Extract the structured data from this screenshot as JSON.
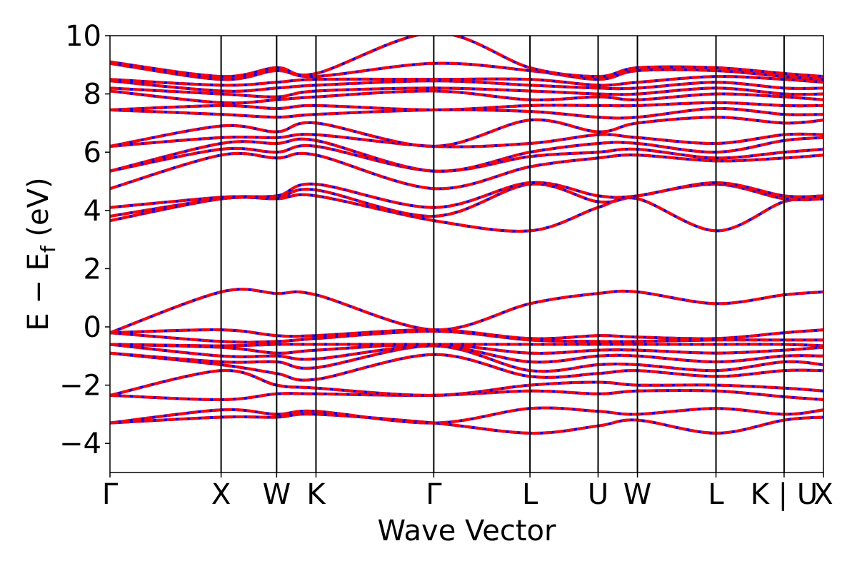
{
  "chart_data": {
    "type": "line",
    "title": "",
    "xlabel": "Wave Vector",
    "ylabel": "E − E",
    "ylabel_subscript": "f",
    "ylabel_unit": " (eV)",
    "ylim": [
      -5,
      10
    ],
    "grid": false,
    "y_ticks": [
      {
        "value": -4,
        "label": "−4"
      },
      {
        "value": -2,
        "label": "−2"
      },
      {
        "value": 0,
        "label": "0"
      },
      {
        "value": 2,
        "label": "2"
      },
      {
        "value": 4,
        "label": "4"
      },
      {
        "value": 6,
        "label": "6"
      },
      {
        "value": 8,
        "label": "8"
      },
      {
        "value": 10,
        "label": "10"
      }
    ],
    "kpoints": [
      {
        "label": "Γ",
        "x": 0
      },
      {
        "label": "X",
        "x": 1.0
      },
      {
        "label": "W",
        "x": 1.5
      },
      {
        "label": "K",
        "x": 1.854
      },
      {
        "label": "Γ",
        "x": 2.914
      },
      {
        "label": "L",
        "x": 3.78
      },
      {
        "label": "U",
        "x": 4.393
      },
      {
        "label": "W",
        "x": 4.747
      },
      {
        "label": "L",
        "x": 5.454
      },
      {
        "label": "K | U",
        "x": 6.067
      },
      {
        "label": "X",
        "x": 6.421
      }
    ],
    "series_colors": {
      "primary": "#0000ff",
      "overlay": "#ff0000"
    },
    "series": [
      {
        "values": [
          -3.3,
          -3.1,
          -3.1,
          -3.0,
          -3.3,
          -3.65,
          -3.4,
          -3.2,
          -3.65,
          -3.2,
          -3.1
        ]
      },
      {
        "values": [
          -3.3,
          -2.85,
          -3.0,
          -2.9,
          -3.3,
          -2.8,
          -2.9,
          -3.0,
          -2.8,
          -3.0,
          -2.85
        ]
      },
      {
        "values": [
          -2.35,
          -2.5,
          -2.3,
          -2.3,
          -2.35,
          -2.2,
          -2.3,
          -2.2,
          -2.2,
          -2.4,
          -2.5
        ]
      },
      {
        "values": [
          -2.35,
          -1.5,
          -2.0,
          -2.1,
          -2.35,
          -2.0,
          -1.9,
          -2.0,
          -2.0,
          -2.1,
          -2.2
        ]
      },
      {
        "values": [
          -0.9,
          -1.3,
          -1.6,
          -1.8,
          -0.95,
          -1.7,
          -1.6,
          -1.5,
          -1.7,
          -1.5,
          -1.5
        ]
      },
      {
        "values": [
          -0.9,
          -1.2,
          -1.2,
          -1.4,
          -0.65,
          -1.5,
          -1.3,
          -1.3,
          -1.5,
          -1.2,
          -1.3
        ]
      },
      {
        "values": [
          -0.6,
          -1.0,
          -1.0,
          -1.1,
          -0.65,
          -1.2,
          -1.0,
          -1.0,
          -1.2,
          -1.0,
          -1.0
        ]
      },
      {
        "values": [
          -0.6,
          -0.7,
          -0.9,
          -0.8,
          -0.6,
          -0.9,
          -0.8,
          -0.8,
          -0.9,
          -0.8,
          -0.7
        ]
      },
      {
        "values": [
          -0.6,
          -0.65,
          -0.6,
          -0.6,
          -0.6,
          -0.6,
          -0.6,
          -0.6,
          -0.6,
          -0.6,
          -0.65
        ]
      },
      {
        "values": [
          -0.2,
          -0.5,
          -0.5,
          -0.4,
          -0.15,
          -0.45,
          -0.5,
          -0.5,
          -0.45,
          -0.45,
          -0.45
        ]
      },
      {
        "values": [
          -0.2,
          -0.1,
          -0.3,
          -0.3,
          -0.1,
          -0.4,
          -0.3,
          -0.35,
          -0.4,
          -0.2,
          -0.1
        ]
      },
      {
        "values": [
          -0.2,
          1.2,
          1.15,
          1.1,
          -0.1,
          0.8,
          1.15,
          1.2,
          0.8,
          1.1,
          1.2
        ]
      },
      {
        "values": [
          3.65,
          4.4,
          4.4,
          4.5,
          3.65,
          3.3,
          4.1,
          4.4,
          3.3,
          4.3,
          4.4
        ]
      },
      {
        "values": [
          3.8,
          4.4,
          4.45,
          4.7,
          3.8,
          4.9,
          4.3,
          4.5,
          4.9,
          4.4,
          4.4
        ]
      },
      {
        "values": [
          4.1,
          4.45,
          4.5,
          4.9,
          4.1,
          4.95,
          4.5,
          4.5,
          4.95,
          4.5,
          4.5
        ]
      },
      {
        "values": [
          4.75,
          5.9,
          5.8,
          5.9,
          4.75,
          5.5,
          5.8,
          5.9,
          5.7,
          5.8,
          5.9
        ]
      },
      {
        "values": [
          5.35,
          6.1,
          6.0,
          6.2,
          5.35,
          5.85,
          6.0,
          6.1,
          5.8,
          6.0,
          6.1
        ]
      },
      {
        "values": [
          5.35,
          6.3,
          6.3,
          6.4,
          5.35,
          6.0,
          6.3,
          6.3,
          6.0,
          6.4,
          6.5
        ]
      },
      {
        "values": [
          6.2,
          6.5,
          6.5,
          6.6,
          6.2,
          6.3,
          6.6,
          6.5,
          6.3,
          6.6,
          6.6
        ]
      },
      {
        "values": [
          6.2,
          6.9,
          6.7,
          7.0,
          6.2,
          7.1,
          6.7,
          7.0,
          7.2,
          7.0,
          7.1
        ]
      },
      {
        "values": [
          7.45,
          7.3,
          7.2,
          7.3,
          7.45,
          7.4,
          7.2,
          7.2,
          7.5,
          7.3,
          7.3
        ]
      },
      {
        "values": [
          7.45,
          7.6,
          7.5,
          7.6,
          7.45,
          7.6,
          7.6,
          7.6,
          7.7,
          7.6,
          7.6
        ]
      },
      {
        "values": [
          8.1,
          7.7,
          7.8,
          7.9,
          8.1,
          7.8,
          7.9,
          7.8,
          8.0,
          7.9,
          7.8
        ]
      },
      {
        "values": [
          8.2,
          8.0,
          7.9,
          8.1,
          8.2,
          8.1,
          8.0,
          8.0,
          8.2,
          8.0,
          8.0
        ]
      },
      {
        "values": [
          8.45,
          8.1,
          8.2,
          8.3,
          8.45,
          8.3,
          8.2,
          8.2,
          8.4,
          8.2,
          8.2
        ]
      },
      {
        "values": [
          8.5,
          8.3,
          8.4,
          8.5,
          8.5,
          8.5,
          8.3,
          8.4,
          8.6,
          8.5,
          8.4
        ]
      },
      {
        "values": [
          9.05,
          8.5,
          8.8,
          8.6,
          9.05,
          8.8,
          8.5,
          8.8,
          8.8,
          8.6,
          8.5
        ]
      },
      {
        "values": [
          9.1,
          8.6,
          8.9,
          8.7,
          10.1,
          8.9,
          8.6,
          8.9,
          8.9,
          8.7,
          8.6
        ]
      }
    ]
  }
}
